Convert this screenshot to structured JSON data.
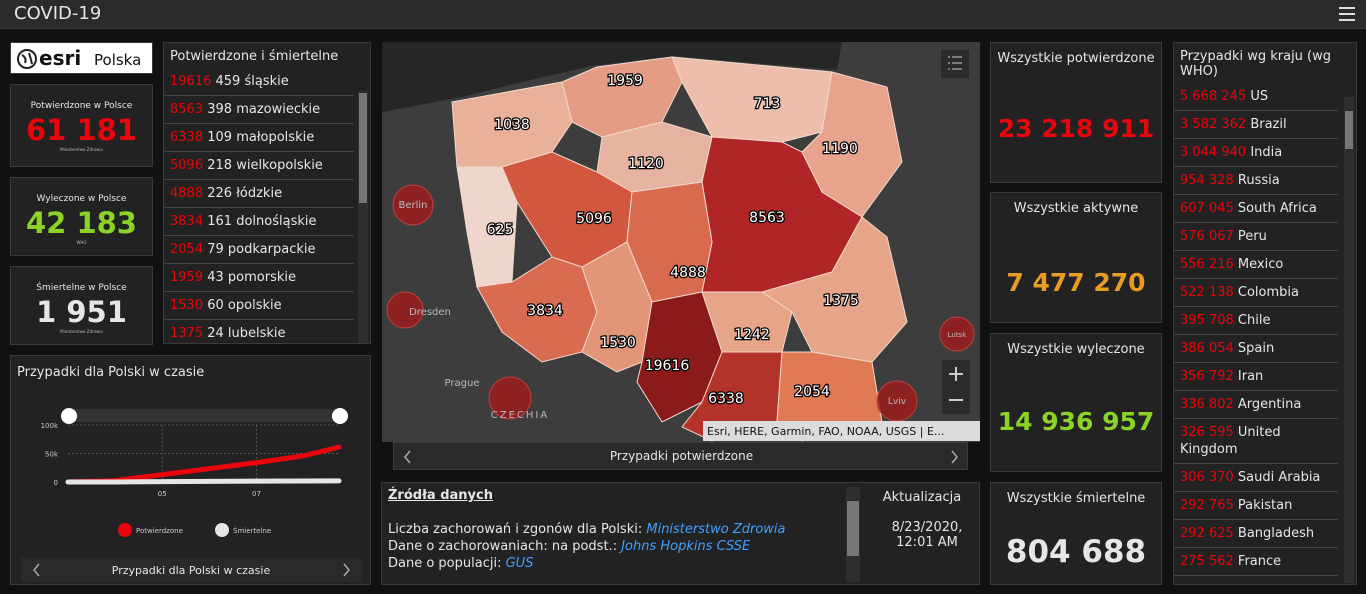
{
  "header": {
    "title": "COVID-19"
  },
  "logo": {
    "brand": "esri",
    "region": "Polska"
  },
  "poland_cards": [
    {
      "label": "Potwierdzone w Polsce",
      "value": "61 181",
      "source": "Ministerstwo Zdrowia"
    },
    {
      "label": "Wyleczone w Polsce",
      "value": "42 183",
      "source": "WHO"
    },
    {
      "label": "Śmiertelne w Polsce",
      "value": "1 951",
      "source": "Ministerstwo Zdrowia"
    }
  ],
  "regions_list": {
    "title": "Potwierdzone i śmiertelne",
    "rows": [
      {
        "confirmed": 19616,
        "deaths": 459,
        "name": "śląskie"
      },
      {
        "confirmed": 8563,
        "deaths": 398,
        "name": "mazowieckie"
      },
      {
        "confirmed": 6338,
        "deaths": 109,
        "name": "małopolskie"
      },
      {
        "confirmed": 5096,
        "deaths": 218,
        "name": "wielkopolskie"
      },
      {
        "confirmed": 4888,
        "deaths": 226,
        "name": "łódzkie"
      },
      {
        "confirmed": 3834,
        "deaths": 161,
        "name": "dolnośląskie"
      },
      {
        "confirmed": 2054,
        "deaths": 79,
        "name": "podkarpackie"
      },
      {
        "confirmed": 1959,
        "deaths": 43,
        "name": "pomorskie"
      },
      {
        "confirmed": 1530,
        "deaths": 60,
        "name": "opolskie"
      },
      {
        "confirmed": 1375,
        "deaths": 24,
        "name": "lubelskie"
      }
    ]
  },
  "time_chart": {
    "title": "Przypadki dla Polski w czasie",
    "x": [
      3,
      4,
      5,
      6,
      7,
      8,
      8.75
    ],
    "series": [
      {
        "name": "Potwierdzone",
        "color": "#e8050b",
        "values": [
          0,
          2500,
          13000,
          23500,
          34000,
          46000,
          61181
        ]
      },
      {
        "name": "Śmiertelne",
        "color": "#e6e6e6",
        "values": [
          0,
          30,
          650,
          1060,
          1460,
          1700,
          1951
        ]
      }
    ],
    "xlim": [
      3,
      8.75
    ],
    "ylim": [
      0,
      100000
    ],
    "xticks": [
      {
        "value": 5,
        "label": "05"
      },
      {
        "value": 7,
        "label": "07"
      }
    ],
    "yticks": [
      0,
      {
        "value": 50000,
        "label": "50k"
      },
      {
        "value": 100000,
        "label": "100k"
      }
    ],
    "footer": "Przypadki dla Polski w czasie"
  },
  "map": {
    "region_values": [
      1959,
      713,
      1038,
      1120,
      1190,
      625,
      5096,
      8563,
      4888,
      1375,
      3834,
      1530,
      1242,
      19616,
      6338,
      2054
    ],
    "places": [
      "Berlin",
      "Dresden",
      "Prague",
      "CZECHIA",
      "Lviv",
      "Lutsk"
    ],
    "attribution": "Esri, HERE, Garmin, FAO, NOAA, USGS | E...",
    "caption": "Przypadki potwierdzone"
  },
  "sources": {
    "title": "Źródła danych",
    "lines": [
      {
        "text": "Liczba zachorowań i zgonów dla Polski:",
        "link": "Ministerstwo Zdrowia"
      },
      {
        "text": "Dane o zachorowaniach: na podst.:",
        "link": "Johns Hopkins CSSE"
      },
      {
        "text": "Dane o populacji:",
        "link": "GUS"
      }
    ],
    "update_label": "Aktualizacja",
    "update_value": "8/23/2020, 12:01 AM"
  },
  "global_cards": [
    {
      "label": "Wszystkie potwierdzone",
      "value": "23 218 911",
      "color": "#e8050b"
    },
    {
      "label": "Wszystkie aktywne",
      "value": "7 477 270",
      "color": "#e89d22"
    },
    {
      "label": "Wszystkie wyleczone",
      "value": "14 936 957",
      "color": "#8bd425"
    },
    {
      "label": "Wszystkie śmiertelne",
      "value": "804 688",
      "color": "#e6e6e6"
    }
  ],
  "country_list": {
    "title": "Przypadki wg kraju (wg WHO)",
    "rows": [
      {
        "value": "5 668 245",
        "name": "US"
      },
      {
        "value": "3 582 362",
        "name": "Brazil"
      },
      {
        "value": "3 044 940",
        "name": "India"
      },
      {
        "value": "954 328",
        "name": "Russia"
      },
      {
        "value": "607 045",
        "name": "South Africa"
      },
      {
        "value": "576 067",
        "name": "Peru"
      },
      {
        "value": "556 216",
        "name": "Mexico"
      },
      {
        "value": "522 138",
        "name": "Colombia"
      },
      {
        "value": "395 708",
        "name": "Chile"
      },
      {
        "value": "386 054",
        "name": "Spain"
      },
      {
        "value": "356 792",
        "name": "Iran"
      },
      {
        "value": "336 802",
        "name": "Argentina"
      },
      {
        "value": "326 595",
        "name": "United Kingdom"
      },
      {
        "value": "306 370",
        "name": "Saudi Arabia"
      },
      {
        "value": "292 765",
        "name": "Pakistan"
      },
      {
        "value": "292 625",
        "name": "Bangladesh"
      },
      {
        "value": "275 562",
        "name": "France"
      }
    ]
  }
}
